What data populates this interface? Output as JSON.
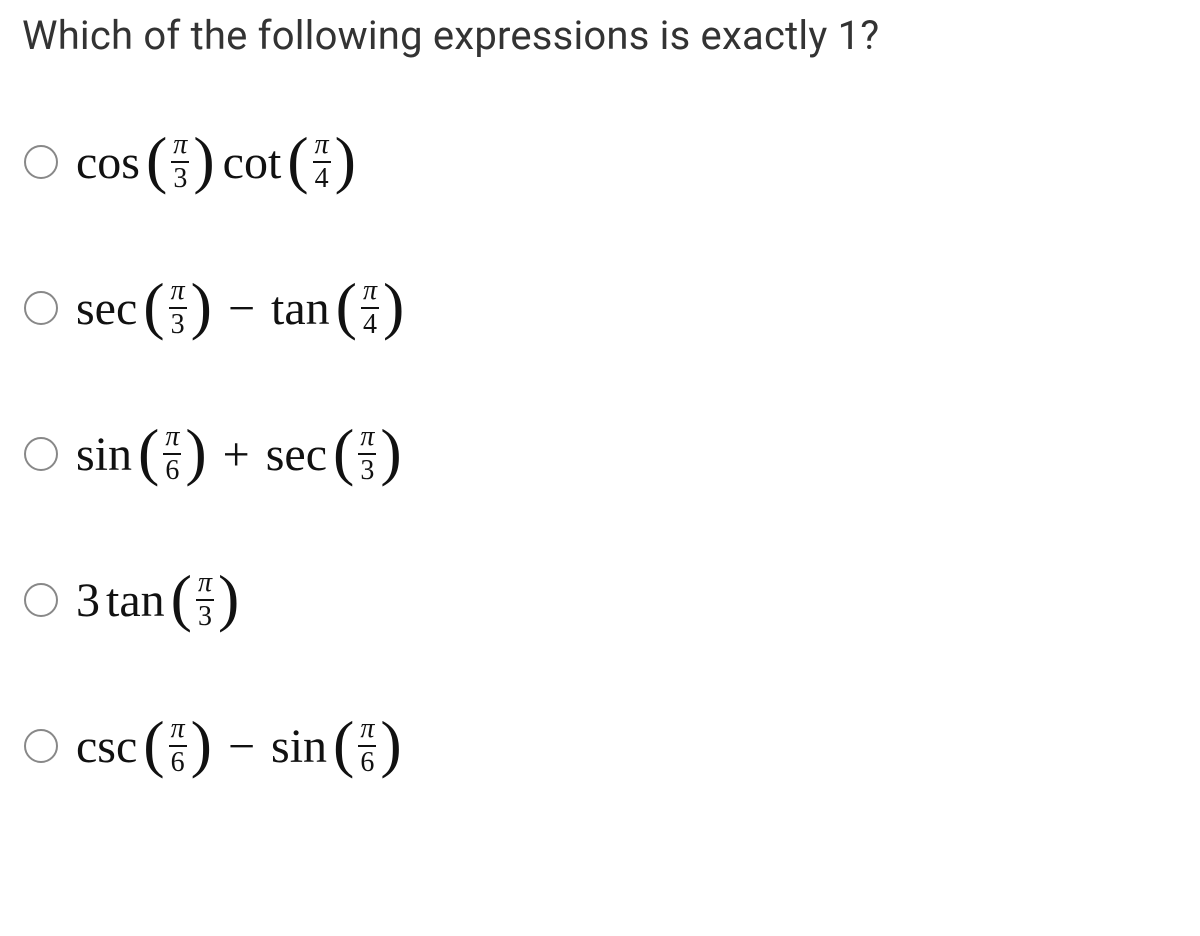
{
  "question": {
    "text": "Which of the following expressions is exactly 1?"
  },
  "constants": {
    "pi": "π"
  },
  "options": [
    {
      "terms": [
        {
          "kind": "fn",
          "fn": "cos",
          "num": "π",
          "den": "3"
        },
        {
          "kind": "gap"
        },
        {
          "kind": "fn",
          "fn": "cot",
          "num": "π",
          "den": "4"
        }
      ]
    },
    {
      "terms": [
        {
          "kind": "fn",
          "fn": "sec",
          "num": "π",
          "den": "3"
        },
        {
          "kind": "op",
          "symbol": "−"
        },
        {
          "kind": "fn",
          "fn": "tan",
          "num": "π",
          "den": "4"
        }
      ]
    },
    {
      "terms": [
        {
          "kind": "fn",
          "fn": "sin",
          "num": "π",
          "den": "6"
        },
        {
          "kind": "op",
          "symbol": "+"
        },
        {
          "kind": "fn",
          "fn": "sec",
          "num": "π",
          "den": "3"
        }
      ]
    },
    {
      "terms": [
        {
          "kind": "coef",
          "value": "3"
        },
        {
          "kind": "fn",
          "fn": "tan",
          "num": "π",
          "den": "3"
        }
      ]
    },
    {
      "terms": [
        {
          "kind": "fn",
          "fn": "csc",
          "num": "π",
          "den": "6"
        },
        {
          "kind": "op",
          "symbol": "−"
        },
        {
          "kind": "fn",
          "fn": "sin",
          "num": "π",
          "den": "6"
        }
      ]
    }
  ]
}
